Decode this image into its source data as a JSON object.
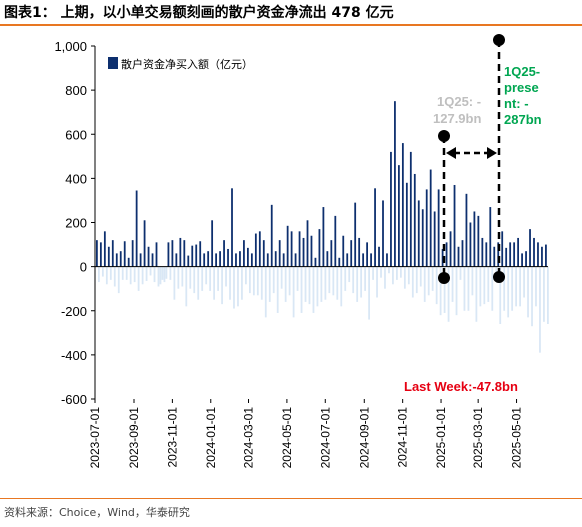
{
  "title": "图表1： 上期，以小单交易额刻画的散户资金净流出 478 亿元",
  "source": "资料来源：Choice，Wind，华泰研究",
  "chart_data": {
    "type": "bar",
    "legend": "散户资金净买入额（亿元）",
    "legend_position": "top-left",
    "ylim": [
      -600,
      1000
    ],
    "yticks": [
      "1,000",
      "800",
      "600",
      "400",
      "200",
      "0",
      "-200",
      "-400",
      "-600"
    ],
    "ytick_values": [
      1000,
      800,
      600,
      400,
      200,
      0,
      -200,
      -400,
      -600
    ],
    "x_start": "2023-07-01",
    "x_end": "2025-06-20",
    "xticks": [
      "2023-07-01",
      "2023-09-01",
      "2023-11-01",
      "2024-01-01",
      "2024-03-01",
      "2024-05-01",
      "2024-07-01",
      "2024-09-01",
      "2024-11-01",
      "2025-01-01",
      "2025-03-01",
      "2025-05-01"
    ],
    "colors": {
      "positive": "#0d2f6e",
      "negative": "#d9e7f5",
      "qtd_label": "#bfbfbf",
      "ytd_label": "#00a651",
      "last_week_label": "#e60012"
    },
    "annotations": {
      "quarter_label": "1Q25: -127.9bn",
      "ytd_label": "1Q25-present: -287bn",
      "last_week": "Last Week:-47.8bn",
      "quarter_range": [
        "2025-01-01",
        "2025-03-31"
      ]
    },
    "series": [
      {
        "values": [
          120,
          -70,
          110,
          -45,
          160,
          -80,
          90,
          -60,
          120,
          -90,
          60,
          -120,
          70,
          -60,
          115,
          -60,
          40,
          -80,
          120,
          -70,
          345,
          -110,
          60,
          -80,
          210,
          -65,
          90,
          -40,
          60,
          -70,
          110,
          -90,
          -80,
          -60,
          -70,
          -55,
          110,
          -60,
          120,
          -150,
          60,
          -100,
          130,
          -90,
          120,
          -180,
          50,
          -100,
          95,
          -120,
          100,
          -150,
          115,
          -110,
          60,
          -80,
          70,
          -110,
          210,
          -150,
          60,
          -110,
          70,
          -170,
          120,
          -90,
          80,
          -150,
          355,
          -190,
          60,
          -180,
          70,
          -150,
          120,
          -80,
          85,
          -120,
          60,
          -130,
          150,
          -130,
          160,
          -150,
          120,
          -230,
          60,
          -160,
          280,
          -120,
          70,
          -210,
          120,
          -100,
          60,
          -160,
          185,
          -130,
          160,
          -230,
          60,
          -110,
          160,
          -210,
          130,
          -160,
          210,
          -170,
          140,
          -210,
          40,
          -180,
          170,
          -160,
          270,
          -150,
          70,
          -120,
          120,
          -130,
          230,
          -150,
          40,
          -180,
          140,
          -110,
          60,
          -70,
          120,
          -120,
          290,
          -160,
          130,
          -140,
          60,
          -110,
          110,
          -240,
          60,
          -60,
          355,
          -140,
          90,
          -50,
          300,
          -100,
          60,
          -30,
          520,
          -80,
          750,
          -60,
          460,
          -50,
          560,
          -100,
          380,
          -80,
          520,
          -140,
          420,
          -120,
          300,
          -90,
          260,
          -160,
          350,
          -130,
          440,
          -110,
          250,
          -170,
          350,
          -220,
          80,
          -210,
          110,
          -250,
          160,
          -160,
          370,
          -220,
          90,
          -60,
          120,
          -200,
          330,
          -200,
          200,
          -130,
          250,
          -250,
          230,
          -180,
          130,
          -170,
          110,
          -160,
          270,
          -200,
          90,
          -60,
          110,
          -260,
          160,
          -200,
          85,
          -230,
          110,
          -200,
          110,
          -180,
          130,
          -180,
          60,
          -140,
          70,
          -230,
          170,
          -270,
          130,
          -180,
          110,
          -390,
          90,
          -250,
          100,
          -260
        ]
      }
    ]
  }
}
